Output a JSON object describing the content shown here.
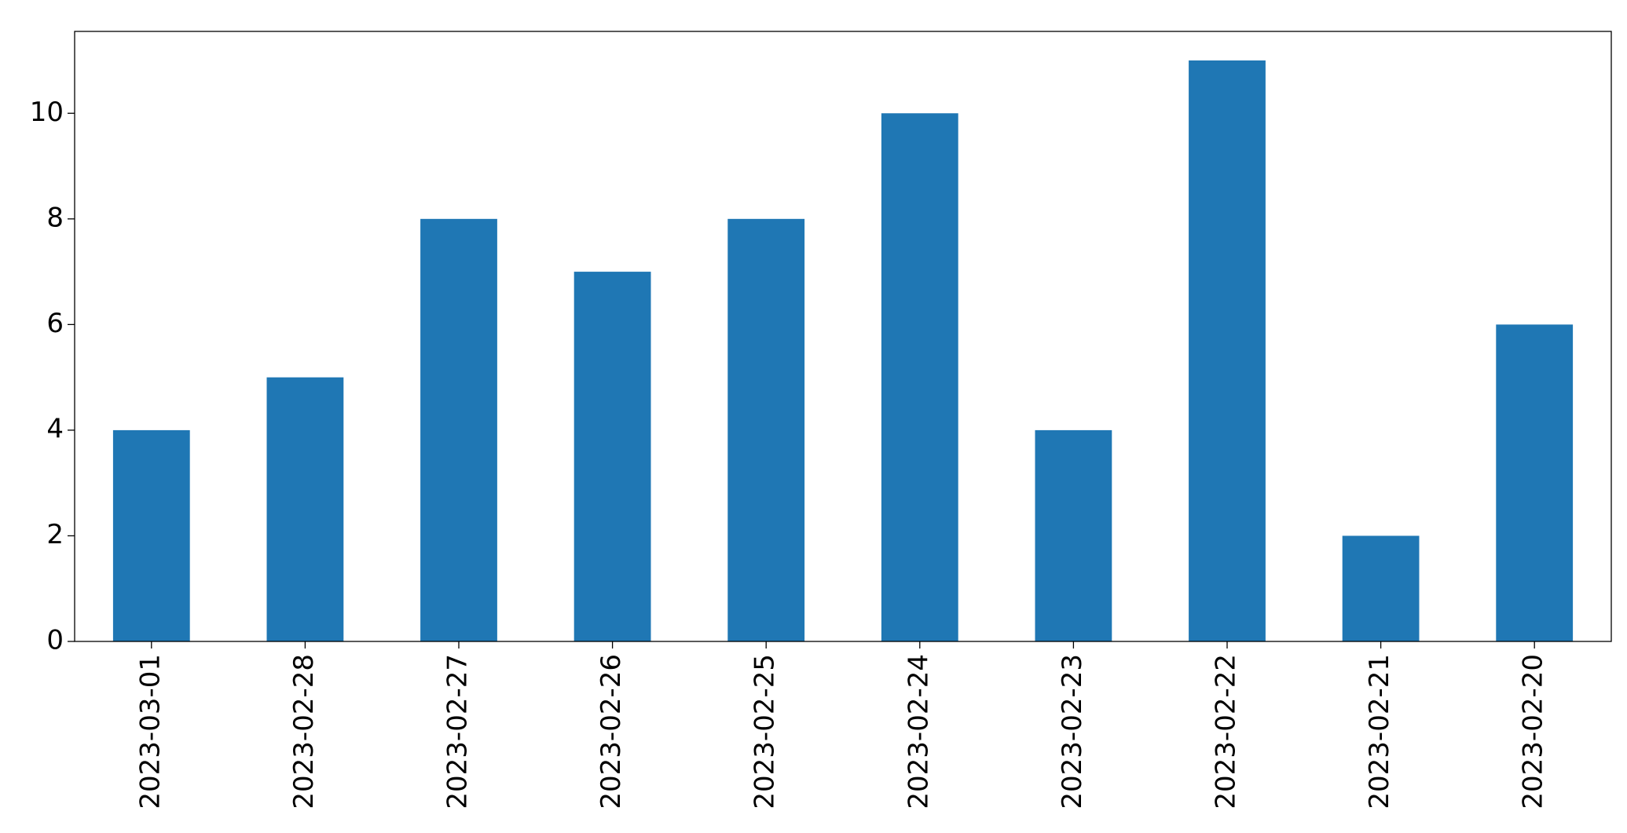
{
  "chart_data": {
    "type": "bar",
    "categories": [
      "2023-03-01",
      "2023-02-28",
      "2023-02-27",
      "2023-02-26",
      "2023-02-25",
      "2023-02-24",
      "2023-02-23",
      "2023-02-22",
      "2023-02-21",
      "2023-02-20"
    ],
    "values": [
      4,
      5,
      8,
      7,
      8,
      10,
      4,
      11,
      2,
      6
    ],
    "color": "#1f77b4",
    "ylim": [
      0,
      11.55
    ],
    "yticks": [
      0,
      2,
      4,
      6,
      8,
      10
    ],
    "grid": false
  }
}
